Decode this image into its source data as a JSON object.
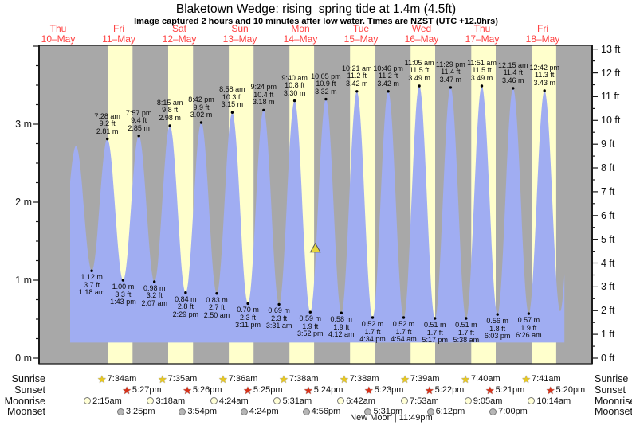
{
  "title": "Blaketown Wedge: rising  spring tide at 1.4m (4.5ft)",
  "subtitle": "Image captured 2 hours and 10 minutes after low water. Times are NZST (UTC +12.0hrs)",
  "colors": {
    "plot_gray": "#a8a8a8",
    "daylight_band": "#ffffcc",
    "tide_fill": "#a0adf2",
    "day_label_red": "#ff4343",
    "axis_line": "#1b1b1b",
    "annotation_text": "#0a0a0a",
    "sunrise_star": "#e8c820",
    "sunset_star": "#d83018",
    "moonrise_circle": "#ffffd6",
    "moonset_circle": "#b6b6b6",
    "marker_yellow": "#e6d63c"
  },
  "chart_data": {
    "type": "area",
    "title": "Blaketown Wedge: rising  spring tide at 1.4m (4.5ft)",
    "x_days": [
      {
        "weekday": "Thu",
        "date": "10–May"
      },
      {
        "weekday": "Fri",
        "date": "11–May"
      },
      {
        "weekday": "Sat",
        "date": "12–May"
      },
      {
        "weekday": "Sun",
        "date": "13–May"
      },
      {
        "weekday": "Mon",
        "date": "14–May"
      },
      {
        "weekday": "Tue",
        "date": "15–May"
      },
      {
        "weekday": "Wed",
        "date": "16–May"
      },
      {
        "weekday": "Thu",
        "date": "17–May"
      },
      {
        "weekday": "Fri",
        "date": "18–May"
      }
    ],
    "y_axis_left": {
      "unit": "m",
      "ticks": [
        {
          "label": "3 m",
          "value": 3
        },
        {
          "label": "2 m",
          "value": 2
        },
        {
          "label": "1 m",
          "value": 1
        },
        {
          "label": "0 m",
          "value": 0
        }
      ]
    },
    "y_axis_right": {
      "unit": "ft",
      "ticks": [
        {
          "label": "13 ft",
          "value": 13
        },
        {
          "label": "12 ft",
          "value": 12
        },
        {
          "label": "11 ft",
          "value": 11
        },
        {
          "label": "10 ft",
          "value": 10
        },
        {
          "label": "9 ft",
          "value": 9
        },
        {
          "label": "8 ft",
          "value": 8
        },
        {
          "label": "7 ft",
          "value": 7
        },
        {
          "label": "6 ft",
          "value": 6
        },
        {
          "label": "5 ft",
          "value": 5
        },
        {
          "label": "4 ft",
          "value": 4
        },
        {
          "label": "3 ft",
          "value": 3
        },
        {
          "label": "2 ft",
          "value": 2
        },
        {
          "label": "1 ft",
          "value": 1
        },
        {
          "label": "0 ft",
          "value": 0
        }
      ]
    },
    "ylim": [
      0,
      4.01
    ],
    "high_tides": [
      {
        "time": "7:28 am",
        "ft": "9.2 ft",
        "m": "2.81 m",
        "height_m": 2.81,
        "t_hours": 31.47
      },
      {
        "time": "7:57 pm",
        "ft": "9.4 ft",
        "m": "2.85 m",
        "height_m": 2.85,
        "t_hours": 43.95
      },
      {
        "time": "8:15 am",
        "ft": "9.8 ft",
        "m": "2.98 m",
        "height_m": 2.98,
        "t_hours": 56.25
      },
      {
        "time": "8:42 pm",
        "ft": "9.9 ft",
        "m": "3.02 m",
        "height_m": 3.02,
        "t_hours": 68.7
      },
      {
        "time": "8:58 am",
        "ft": "10.3 ft",
        "m": "3.15 m",
        "height_m": 3.15,
        "t_hours": 80.97
      },
      {
        "time": "9:24 pm",
        "ft": "10.4 ft",
        "m": "3.18 m",
        "height_m": 3.18,
        "t_hours": 93.4
      },
      {
        "time": "9:40 am",
        "ft": "10.8 ft",
        "m": "3.30 m",
        "height_m": 3.3,
        "t_hours": 105.67
      },
      {
        "time": "10:05 pm",
        "ft": "10.9 ft",
        "m": "3.32 m",
        "height_m": 3.32,
        "t_hours": 118.08
      },
      {
        "time": "10:21 am",
        "ft": "11.2 ft",
        "m": "3.42 m",
        "height_m": 3.42,
        "t_hours": 130.35
      },
      {
        "time": "10:46 pm",
        "ft": "11.2 ft",
        "m": "3.42 m",
        "height_m": 3.42,
        "t_hours": 142.77
      },
      {
        "time": "11:05 am",
        "ft": "11.5 ft",
        "m": "3.49 m",
        "height_m": 3.49,
        "t_hours": 155.08
      },
      {
        "time": "11:29 pm",
        "ft": "11.4 ft",
        "m": "3.47 m",
        "height_m": 3.47,
        "t_hours": 167.48
      },
      {
        "time": "11:51 am",
        "ft": "11.5 ft",
        "m": "3.49 m",
        "height_m": 3.49,
        "t_hours": 179.85
      },
      {
        "time": "12:15 am",
        "ft": "11.4 ft",
        "m": "3.46 m",
        "height_m": 3.46,
        "t_hours": 192.25
      },
      {
        "time": "12:42 pm",
        "ft": "11.3 ft",
        "m": "3.43 m",
        "height_m": 3.43,
        "t_hours": 204.7
      }
    ],
    "low_tides": [
      {
        "m": "1.12 m",
        "ft": "3.7 ft",
        "time": "1:18 am",
        "height_m": 1.12,
        "t_hours": 25.3
      },
      {
        "m": "1.00 m",
        "ft": "3.3 ft",
        "time": "1:43 pm",
        "height_m": 1.0,
        "t_hours": 37.72
      },
      {
        "m": "0.98 m",
        "ft": "3.2 ft",
        "time": "2:07 am",
        "height_m": 0.98,
        "t_hours": 50.12
      },
      {
        "m": "0.84 m",
        "ft": "2.8 ft",
        "time": "2:29 pm",
        "height_m": 0.84,
        "t_hours": 62.48
      },
      {
        "m": "0.83 m",
        "ft": "2.7 ft",
        "time": "2:50 am",
        "height_m": 0.83,
        "t_hours": 74.83
      },
      {
        "m": "0.70 m",
        "ft": "2.3 ft",
        "time": "3:11 pm",
        "height_m": 0.7,
        "t_hours": 87.18
      },
      {
        "m": "0.69 m",
        "ft": "2.3 ft",
        "time": "3:31 am",
        "height_m": 0.69,
        "t_hours": 99.52
      },
      {
        "m": "0.59 m",
        "ft": "1.9 ft",
        "time": "3:52 pm",
        "height_m": 0.59,
        "t_hours": 111.87
      },
      {
        "m": "0.58 m",
        "ft": "1.9 ft",
        "time": "4:12 am",
        "height_m": 0.58,
        "t_hours": 124.2
      },
      {
        "m": "0.52 m",
        "ft": "1.7 ft",
        "time": "4:34 pm",
        "height_m": 0.52,
        "t_hours": 136.57
      },
      {
        "m": "0.52 m",
        "ft": "1.7 ft",
        "time": "4:54 am",
        "height_m": 0.52,
        "t_hours": 148.9
      },
      {
        "m": "0.51 m",
        "ft": "1.7 ft",
        "time": "5:17 pm",
        "height_m": 0.51,
        "t_hours": 161.28
      },
      {
        "m": "0.51 m",
        "ft": "1.7 ft",
        "time": "5:38 am",
        "height_m": 0.51,
        "t_hours": 173.63
      },
      {
        "m": "0.56 m",
        "ft": "1.8 ft",
        "time": "6:03 pm",
        "height_m": 0.56,
        "t_hours": 186.05
      },
      {
        "m": "0.57 m",
        "ft": "1.9 ft",
        "time": "6:26 am",
        "height_m": 0.57,
        "t_hours": 198.43
      }
    ],
    "curve_edge_anchors": {
      "pre": [
        {
          "t": 12.75,
          "h": 1.2
        },
        {
          "t": 19.07,
          "h": 2.72
        }
      ],
      "post": [
        {
          "t": 210.92,
          "h": 0.6
        },
        {
          "t": 217.1,
          "h": 3.4
        }
      ],
      "fill_t_start": 16.74,
      "fill_t_end": 212.6,
      "fill_bottom_m": 0.2
    },
    "current_tide_marker": {
      "height_m": 1.4,
      "t_hours": 113.9
    }
  },
  "astro": {
    "rows": [
      {
        "id": "sunrise",
        "label": "Sunrise",
        "icon": "star-yellow",
        "entries": [
          {
            "time": "7:34am",
            "t_hours": 31.57
          },
          {
            "time": "7:35am",
            "t_hours": 55.58
          },
          {
            "time": "7:36am",
            "t_hours": 79.6
          },
          {
            "time": "7:38am",
            "t_hours": 103.63
          },
          {
            "time": "7:38am",
            "t_hours": 127.63
          },
          {
            "time": "7:39am",
            "t_hours": 151.65
          },
          {
            "time": "7:40am",
            "t_hours": 175.67
          },
          {
            "time": "7:41am",
            "t_hours": 199.68
          }
        ]
      },
      {
        "id": "sunset",
        "label": "Sunset",
        "icon": "star-red",
        "entries": [
          {
            "time": "5:27pm",
            "t_hours": 41.45
          },
          {
            "time": "5:26pm",
            "t_hours": 65.43
          },
          {
            "time": "5:25pm",
            "t_hours": 89.42
          },
          {
            "time": "5:24pm",
            "t_hours": 113.4
          },
          {
            "time": "5:23pm",
            "t_hours": 137.38
          },
          {
            "time": "5:22pm",
            "t_hours": 161.37
          },
          {
            "time": "5:21pm",
            "t_hours": 185.35
          },
          {
            "time": "5:20pm",
            "t_hours": 209.33
          }
        ]
      },
      {
        "id": "moonrise",
        "label": "Moonrise",
        "icon": "circle-pale",
        "entries": [
          {
            "time": "2:15am",
            "t_hours": 26.25
          },
          {
            "time": "3:18am",
            "t_hours": 51.3
          },
          {
            "time": "4:24am",
            "t_hours": 76.4
          },
          {
            "time": "5:31am",
            "t_hours": 101.52
          },
          {
            "time": "6:42am",
            "t_hours": 126.7
          },
          {
            "time": "7:53am",
            "t_hours": 151.88
          },
          {
            "time": "9:05am",
            "t_hours": 177.08
          },
          {
            "time": "10:14am",
            "t_hours": 202.23
          }
        ]
      },
      {
        "id": "moonset",
        "label": "Moonset",
        "icon": "circle-gray",
        "entries": [
          {
            "time": "3:25pm",
            "t_hours": 39.42
          },
          {
            "time": "3:54pm",
            "t_hours": 63.9
          },
          {
            "time": "4:24pm",
            "t_hours": 88.4
          },
          {
            "time": "4:56pm",
            "t_hours": 112.93
          },
          {
            "time": "5:31pm",
            "t_hours": 137.52
          },
          {
            "time": "6:12pm",
            "t_hours": 162.2
          },
          {
            "time": "7:00pm",
            "t_hours": 187.0
          }
        ]
      }
    ],
    "moon_phase": {
      "label": "New Moon",
      "separator": "|",
      "time": "11:49pm",
      "t_hours": 143.82
    }
  }
}
